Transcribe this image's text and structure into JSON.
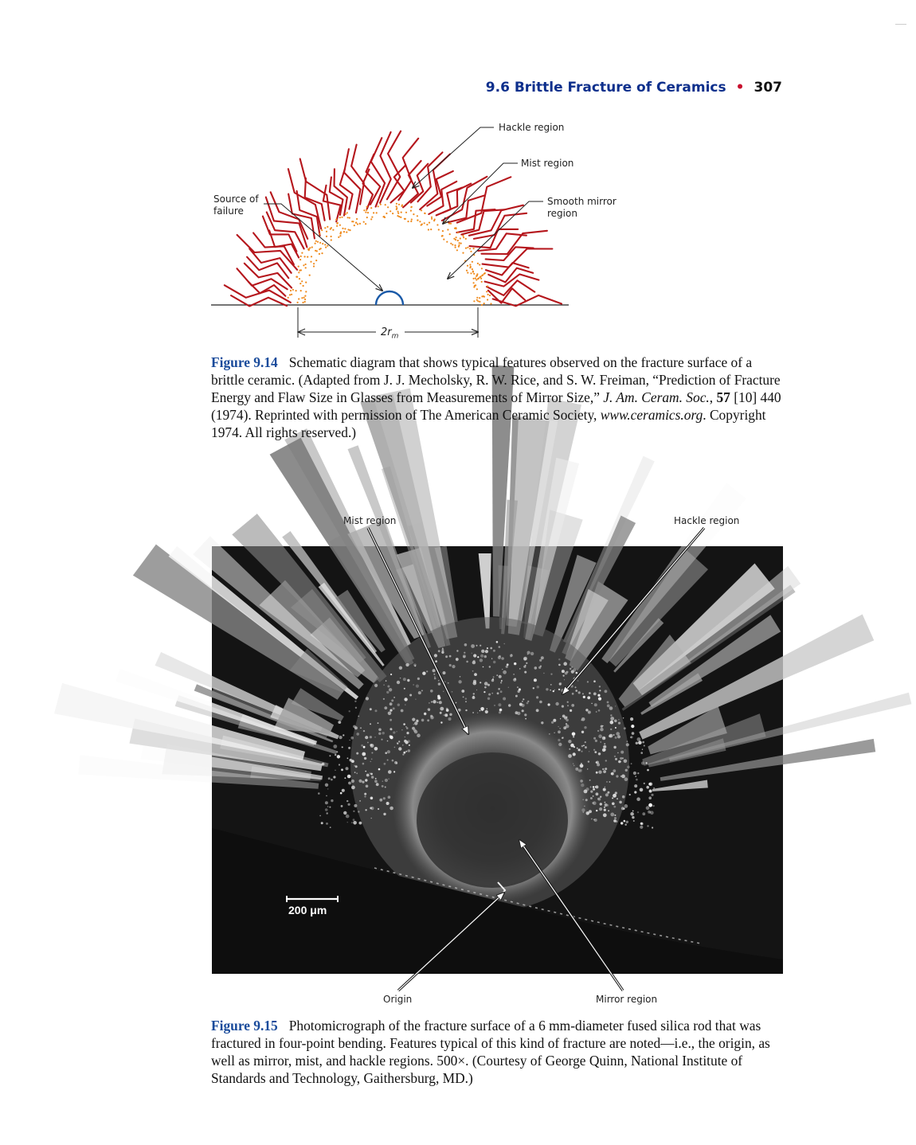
{
  "header": {
    "section": "9.6 Brittle Fracture of Ceramics",
    "page_number": "307"
  },
  "figure_14": {
    "labels": {
      "hackle": "Hackle region",
      "mist": "Mist region",
      "mirror_line1": "Smooth mirror",
      "mirror_line2": "region",
      "source_line1": "Source of",
      "source_line2": "failure",
      "dimension_main": "2r",
      "dimension_sub": "m"
    },
    "caption": {
      "number": "Figure 9.14",
      "text_1": "Schematic diagram that shows typical features observed on the fracture surface of a brittle ceramic. (Adapted from J. J. Mecholsky, R. W. Rice, and S. W. Freiman, “Prediction of Fracture Energy and Flaw Size in Glasses from Measurements of Mirror Size,” ",
      "journal": "J. Am. Ceram. Soc.",
      "text_2": ", ",
      "volume": "57",
      "text_3": " [10] 440 (1974). Reprinted with permission of The American Ceramic Society, ",
      "url": "www.ceramics.org",
      "text_4": ". Copyright 1974. All rights reserved.)"
    }
  },
  "figure_15": {
    "labels": {
      "mist": "Mist region",
      "hackle": "Hackle region",
      "origin": "Origin",
      "mirror": "Mirror region",
      "scale_bar": "200 μm"
    },
    "caption": {
      "number": "Figure 9.15",
      "text": "Photomicrograph of the fracture surface of a 6 mm-diameter fused silica rod that was fractured in four-point bending. Features typical of this kind of fracture are noted—i.e., the origin, as well as mirror, mist, and hackle regions. 500×. (Courtesy of George Quinn, National Institute of Standards and Technology, Gaithersburg, MD.)"
    }
  },
  "colors": {
    "section_blue": "#0d2f8c",
    "bullet_red": "#c8102e",
    "hackle_red": "#b5161c",
    "mist_orange": "#ef8a1c",
    "origin_blue": "#1a5aa8"
  }
}
